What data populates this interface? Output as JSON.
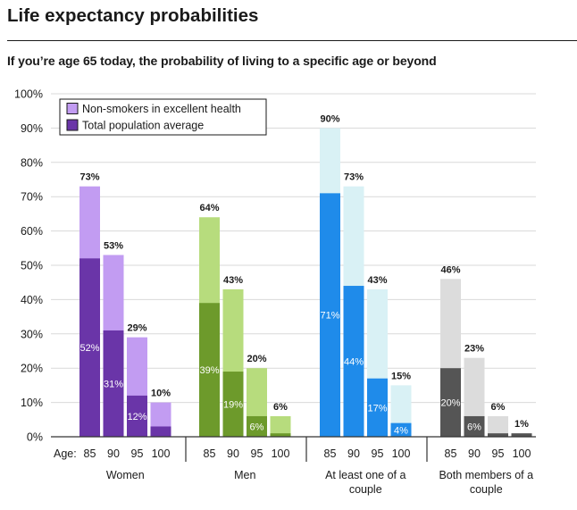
{
  "header": {
    "title": "Life expectancy probabilities",
    "subtitle": "If you’re age 65 today, the probability of living to a specific age or beyond"
  },
  "colors": {
    "women_light": "#c29cf2",
    "women_dark": "#6a35a8",
    "men_light": "#b7dc7d",
    "men_dark": "#6d9a2b",
    "couple_one_light": "#d9f1f5",
    "couple_one_dark": "#1f8bea",
    "couple_both_light": "#dcdcdc",
    "couple_both_dark": "#555555",
    "grid": "#d9d9d9",
    "axis": "#333333"
  },
  "chart_data": {
    "type": "bar",
    "title": "Life expectancy probabilities",
    "subtitle": "If you’re age 65 today, the probability of living to a specific age or beyond",
    "ylim": [
      0,
      100
    ],
    "y_ticks": [
      "0%",
      "10%",
      "20%",
      "30%",
      "40%",
      "50%",
      "60%",
      "70%",
      "80%",
      "90%",
      "100%"
    ],
    "grid": true,
    "legend_position": "top-left",
    "legend": [
      "Non-smokers in excellent health",
      "Total population average"
    ],
    "x_axis_prefix": "Age:",
    "groups": [
      {
        "name": "Women",
        "ages": [
          "85",
          "90",
          "95",
          "100"
        ],
        "non_smokers": [
          73,
          53,
          29,
          10
        ],
        "total_population": [
          52,
          31,
          12,
          3
        ],
        "non_smokers_labels": [
          "73%",
          "53%",
          "29%",
          "10%"
        ],
        "total_labels": [
          "52%",
          "31%",
          "12%",
          ""
        ]
      },
      {
        "name": "Men",
        "ages": [
          "85",
          "90",
          "95",
          "100"
        ],
        "non_smokers": [
          64,
          43,
          20,
          6
        ],
        "total_population": [
          39,
          19,
          6,
          1
        ],
        "non_smokers_labels": [
          "64%",
          "43%",
          "20%",
          "6%"
        ],
        "total_labels": [
          "39%",
          "19%",
          "6%",
          ""
        ]
      },
      {
        "name": "At least one of a couple",
        "ages": [
          "85",
          "90",
          "95",
          "100"
        ],
        "non_smokers": [
          90,
          73,
          43,
          15
        ],
        "total_population": [
          71,
          44,
          17,
          4
        ],
        "non_smokers_labels": [
          "90%",
          "73%",
          "43%",
          "15%"
        ],
        "total_labels": [
          "71%",
          "44%",
          "17%",
          "4%"
        ]
      },
      {
        "name": "Both members of a couple",
        "ages": [
          "85",
          "90",
          "95",
          "100"
        ],
        "non_smokers": [
          46,
          23,
          6,
          1
        ],
        "total_population": [
          20,
          6,
          1,
          1
        ],
        "non_smokers_labels": [
          "46%",
          "23%",
          "6%",
          "1%"
        ],
        "total_labels": [
          "20%",
          "6%",
          "",
          ""
        ]
      }
    ]
  }
}
